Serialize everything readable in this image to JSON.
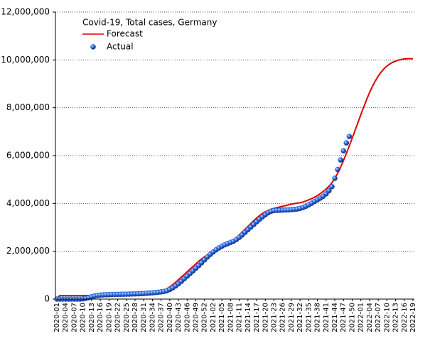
{
  "chart_data": {
    "type": "line",
    "title": "Covid-19, Total cases, Germany",
    "categories": [
      "2020-01",
      null,
      null,
      "2020-04",
      null,
      null,
      "2020-07",
      null,
      null,
      "2020-10",
      null,
      null,
      "2020-13",
      null,
      null,
      "2020-16",
      null,
      null,
      "2020-19",
      null,
      null,
      "2020-22",
      null,
      null,
      "2020-25",
      null,
      null,
      "2020-28",
      null,
      null,
      "2020-31",
      null,
      null,
      "2020-34",
      null,
      null,
      "2020-37",
      null,
      null,
      "2020-40",
      null,
      null,
      "2020-43",
      null,
      null,
      "2020-46",
      null,
      null,
      "2020-49",
      null,
      null,
      "2020-52",
      null,
      null,
      "2021-02",
      null,
      null,
      "2021-05",
      null,
      null,
      "2021-08",
      null,
      null,
      "2021-11",
      null,
      null,
      "2021-14",
      null,
      null,
      "2021-17",
      null,
      null,
      "2021-20",
      null,
      null,
      "2021-23",
      null,
      null,
      "2021-26",
      null,
      null,
      "2021-29",
      null,
      null,
      "2021-32",
      null,
      null,
      "2021-35",
      null,
      null,
      "2021-38",
      null,
      null,
      "2021-41",
      null,
      null,
      "2021-44",
      null,
      null,
      "2021-47",
      null,
      null,
      "2021-50",
      null,
      null,
      "2022-01",
      null,
      null,
      "2022-04",
      null,
      null,
      "2022-07",
      null,
      null,
      "2022-10",
      null,
      null,
      "2022-13",
      null,
      null,
      "2022-16",
      null,
      null,
      "2022-19"
    ],
    "series": [
      {
        "name": "Forecast",
        "color": "#dd0000",
        "marker": "line",
        "values": [
          0,
          150000,
          150000,
          150000,
          150000,
          150000,
          150000,
          150000,
          150000,
          150000,
          150000,
          150000,
          150000,
          150000,
          150000,
          150000,
          150000,
          150000,
          150000,
          150000,
          150000,
          150000,
          150000,
          150000,
          150000,
          150000,
          150000,
          150000,
          150000,
          155000,
          160000,
          170000,
          185000,
          205000,
          230000,
          265000,
          310000,
          365000,
          430000,
          510000,
          600000,
          700000,
          810000,
          920000,
          1030000,
          1140000,
          1250000,
          1360000,
          1470000,
          1580000,
          1680000,
          1770000,
          1850000,
          1920000,
          1990000,
          2050000,
          2110000,
          2170000,
          2230000,
          2300000,
          2380000,
          2470000,
          2570000,
          2680000,
          2800000,
          2920000,
          3040000,
          3160000,
          3280000,
          3390000,
          3490000,
          3580000,
          3650000,
          3710000,
          3760000,
          3790000,
          3820000,
          3850000,
          3880000,
          3910000,
          3940000,
          3970000,
          3990000,
          4010000,
          4030000,
          4060000,
          4100000,
          4150000,
          4200000,
          4260000,
          4330000,
          4410000,
          4500000,
          4600000,
          4720000,
          4860000,
          5040000,
          5260000,
          5510000,
          5790000,
          6090000,
          6400000,
          6720000,
          7050000,
          7380000,
          7710000,
          8030000,
          8340000,
          8630000,
          8890000,
          9120000,
          9320000,
          9490000,
          9630000,
          9740000,
          9830000,
          9900000,
          9950000,
          9990000,
          10020000,
          10040000,
          10050000,
          10050000,
          10050000
        ]
      },
      {
        "name": "Actual",
        "color": "#2255cc",
        "marker": "dot",
        "values": [
          0,
          0,
          0,
          0,
          0,
          0,
          0,
          0,
          0,
          10000,
          30000,
          60000,
          100000,
          130000,
          150000,
          165000,
          175000,
          180000,
          185000,
          190000,
          193000,
          196000,
          199000,
          202000,
          205000,
          208000,
          212000,
          217000,
          222000,
          228000,
          235000,
          243000,
          252000,
          262000,
          273000,
          285000,
          300000,
          320000,
          350000,
          400000,
          470000,
          550000,
          640000,
          740000,
          850000,
          960000,
          1070000,
          1180000,
          1290000,
          1400000,
          1520000,
          1640000,
          1760000,
          1870000,
          1970000,
          2060000,
          2140000,
          2210000,
          2270000,
          2320000,
          2370000,
          2420000,
          2490000,
          2580000,
          2680000,
          2790000,
          2900000,
          3010000,
          3120000,
          3230000,
          3340000,
          3440000,
          3530000,
          3610000,
          3670000,
          3700000,
          3710000,
          3715000,
          3720000,
          3725000,
          3730000,
          3740000,
          3750000,
          3765000,
          3790000,
          3830000,
          3880000,
          3940000,
          4010000,
          4080000,
          4150000,
          4220000,
          4300000,
          4400000,
          4530000,
          4700000,
          5050000,
          5420000,
          5820000,
          6200000,
          6530000,
          6800000,
          null,
          null,
          null,
          null,
          null,
          null,
          null,
          null,
          null,
          null,
          null,
          null,
          null,
          null,
          null,
          null,
          null,
          null,
          null,
          null,
          null,
          null
        ]
      }
    ],
    "ylim": [
      0,
      12000000
    ],
    "yticks": [
      0,
      {
        "value": 2000000,
        "label": "2,000,000"
      },
      {
        "value": 4000000,
        "label": "4,000,000"
      },
      {
        "value": 6000000,
        "label": "6,000,000"
      },
      {
        "value": 8000000,
        "label": "8,000,000"
      },
      {
        "value": 10000000,
        "label": "10,000,000"
      },
      {
        "value": 12000000,
        "label": "12,000,000"
      }
    ],
    "grid": true
  }
}
